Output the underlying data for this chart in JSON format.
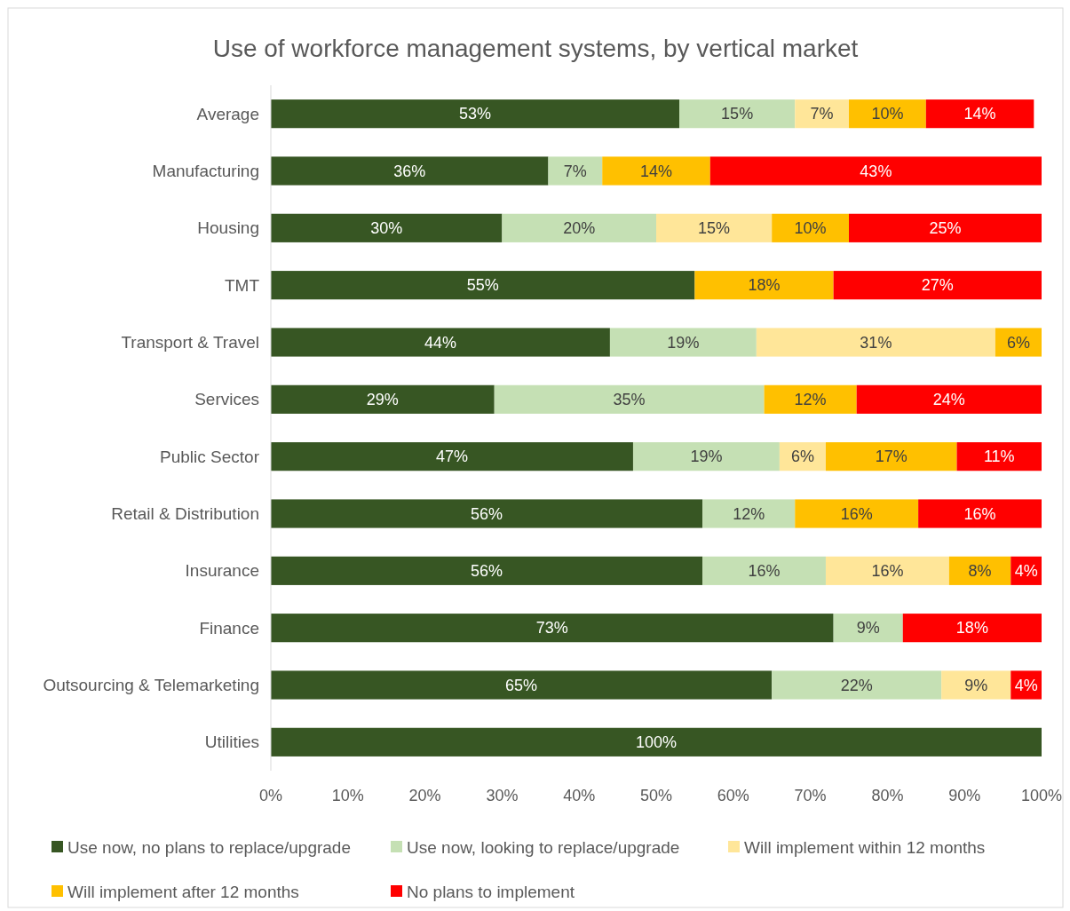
{
  "chart_data": {
    "type": "bar",
    "orientation": "horizontal",
    "stacked": true,
    "title": "Use of workforce management systems, by vertical market",
    "categories": [
      "Average",
      "Manufacturing",
      "Housing",
      "TMT",
      "Transport & Travel",
      "Services",
      "Public Sector",
      "Retail & Distribution",
      "Insurance",
      "Finance",
      "Outsourcing & Telemarketing",
      "Utilities"
    ],
    "series": [
      {
        "name": "Use now, no plans to replace/upgrade",
        "color": "#375623",
        "values": [
          53,
          36,
          30,
          55,
          44,
          29,
          47,
          56,
          56,
          73,
          65,
          100
        ],
        "value_labels": [
          "53%",
          "36%",
          "30%",
          "55%",
          "44%",
          "29%",
          "47%",
          "56%",
          "56%",
          "73%",
          "65%",
          "100%"
        ]
      },
      {
        "name": "Use now, looking to replace/upgrade",
        "color": "#c5e0b4",
        "values": [
          15,
          7,
          20,
          null,
          19,
          35,
          19,
          12,
          16,
          9,
          22,
          null
        ],
        "value_labels": [
          "15%",
          "7%",
          "20%",
          null,
          "19%",
          "35%",
          "19%",
          "12%",
          "16%",
          "9%",
          "22%",
          null
        ]
      },
      {
        "name": "Will implement within 12 months",
        "color": "#ffe699",
        "values": [
          7,
          null,
          15,
          null,
          31,
          null,
          6,
          null,
          16,
          null,
          9,
          null
        ],
        "value_labels": [
          "7%",
          null,
          "15%",
          null,
          "31%",
          null,
          "6%",
          null,
          "16%",
          null,
          "9%",
          null
        ]
      },
      {
        "name": "Will implement after 12 months",
        "color": "#ffc000",
        "values": [
          10,
          14,
          10,
          18,
          6,
          12,
          17,
          16,
          8,
          null,
          null,
          null
        ],
        "value_labels": [
          "10%",
          "14%",
          "10%",
          "18%",
          "6%",
          "12%",
          "17%",
          "16%",
          "8%",
          null,
          null,
          null
        ]
      },
      {
        "name": "No plans to implement",
        "color": "#ff0000",
        "values": [
          14,
          43,
          25,
          27,
          null,
          24,
          11,
          16,
          4,
          18,
          4,
          null
        ],
        "value_labels": [
          "14%",
          "43%",
          "25%",
          "27%",
          null,
          "24%",
          "11%",
          "16%",
          "4%",
          "18%",
          "4%",
          null
        ]
      }
    ],
    "xlim": [
      0,
      100
    ],
    "xticks": [
      {
        "value": 0,
        "label": "0%"
      },
      {
        "value": 10,
        "label": "10%"
      },
      {
        "value": 20,
        "label": "20%"
      },
      {
        "value": 30,
        "label": "30%"
      },
      {
        "value": 40,
        "label": "40%"
      },
      {
        "value": 50,
        "label": "50%"
      },
      {
        "value": 60,
        "label": "60%"
      },
      {
        "value": 70,
        "label": "70%"
      },
      {
        "value": 80,
        "label": "80%"
      },
      {
        "value": 90,
        "label": "90%"
      },
      {
        "value": 100,
        "label": "100%"
      }
    ],
    "grid": false,
    "legend": "bottom"
  }
}
